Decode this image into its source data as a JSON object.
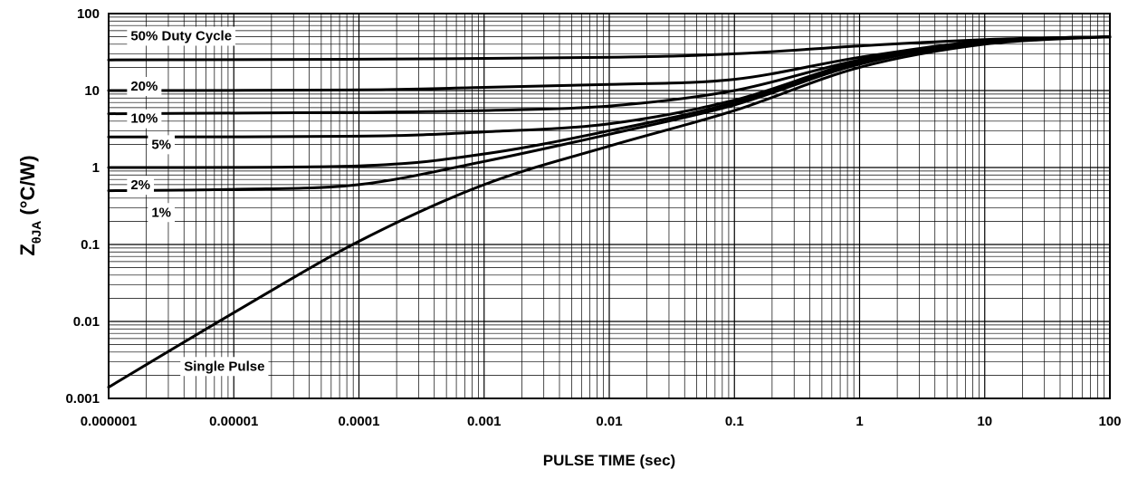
{
  "chart_data": {
    "type": "line",
    "xlabel": "PULSE TIME (sec)",
    "ylabel_main": "Z",
    "ylabel_sub": "θJA",
    "ylabel_unit": " (°C/W)",
    "x_scale": "log",
    "y_scale": "log",
    "xlim": [
      1e-06,
      100
    ],
    "ylim": [
      0.001,
      100
    ],
    "grid": true,
    "x_ticks": [
      {
        "value": 1e-06,
        "label": "0.000001"
      },
      {
        "value": 1e-05,
        "label": "0.00001"
      },
      {
        "value": 0.0001,
        "label": "0.0001"
      },
      {
        "value": 0.001,
        "label": "0.001"
      },
      {
        "value": 0.01,
        "label": "0.01"
      },
      {
        "value": 0.1,
        "label": "0.1"
      },
      {
        "value": 1,
        "label": "1"
      },
      {
        "value": 10,
        "label": "10"
      },
      {
        "value": 100,
        "label": "100"
      }
    ],
    "y_ticks": [
      {
        "value": 0.001,
        "label": "0.001"
      },
      {
        "value": 0.01,
        "label": "0.01"
      },
      {
        "value": 0.1,
        "label": "0.1"
      },
      {
        "value": 1,
        "label": "1"
      },
      {
        "value": 10,
        "label": "10"
      },
      {
        "value": 100,
        "label": "100"
      }
    ],
    "series": [
      {
        "name": "50% Duty Cycle",
        "label_x": 1.5e-06,
        "label_y": 45,
        "x": [
          1e-06,
          0.0001,
          0.01,
          0.1,
          1,
          10,
          100
        ],
        "y": [
          25,
          25.5,
          27,
          30,
          38,
          46,
          50
        ]
      },
      {
        "name": "20%",
        "label_x": 1.5e-06,
        "label_y": 10,
        "x": [
          1e-06,
          0.0001,
          0.001,
          0.01,
          0.1,
          1,
          10,
          100
        ],
        "y": [
          10,
          10.2,
          11,
          12,
          14,
          27,
          44,
          50
        ]
      },
      {
        "name": "10%",
        "label_x": 1.5e-06,
        "label_y": 3.8,
        "x": [
          1e-06,
          0.0001,
          0.001,
          0.01,
          0.1,
          1,
          10,
          100
        ],
        "y": [
          5,
          5.2,
          5.5,
          6.3,
          10,
          25,
          44,
          50
        ]
      },
      {
        "name": "5%",
        "label_x": 2.2e-06,
        "label_y": 1.75,
        "x": [
          1e-06,
          0.0001,
          0.001,
          0.01,
          0.1,
          1,
          10,
          100
        ],
        "y": [
          2.5,
          2.55,
          2.9,
          3.7,
          7.5,
          24,
          44,
          50
        ]
      },
      {
        "name": "2%",
        "label_x": 1.5e-06,
        "label_y": 0.52,
        "x": [
          1e-06,
          0.0001,
          0.001,
          0.01,
          0.1,
          1,
          10,
          100
        ],
        "y": [
          1,
          1.05,
          1.5,
          3,
          7,
          23,
          43,
          50
        ]
      },
      {
        "name": "1%",
        "label_x": 2.2e-06,
        "label_y": 0.23,
        "x": [
          1e-06,
          1e-05,
          0.0001,
          0.001,
          0.01,
          0.1,
          1,
          10,
          100
        ],
        "y": [
          0.5,
          0.52,
          0.6,
          1.2,
          2.7,
          6.5,
          22,
          42,
          50
        ]
      },
      {
        "name": "Single Pulse",
        "label_x": 4e-06,
        "label_y": 0.0023,
        "x": [
          1e-06,
          1e-05,
          0.0001,
          0.001,
          0.01,
          0.1,
          1,
          10,
          100
        ],
        "y": [
          0.0014,
          0.013,
          0.11,
          0.6,
          1.9,
          5.5,
          20,
          40,
          50
        ]
      }
    ]
  }
}
